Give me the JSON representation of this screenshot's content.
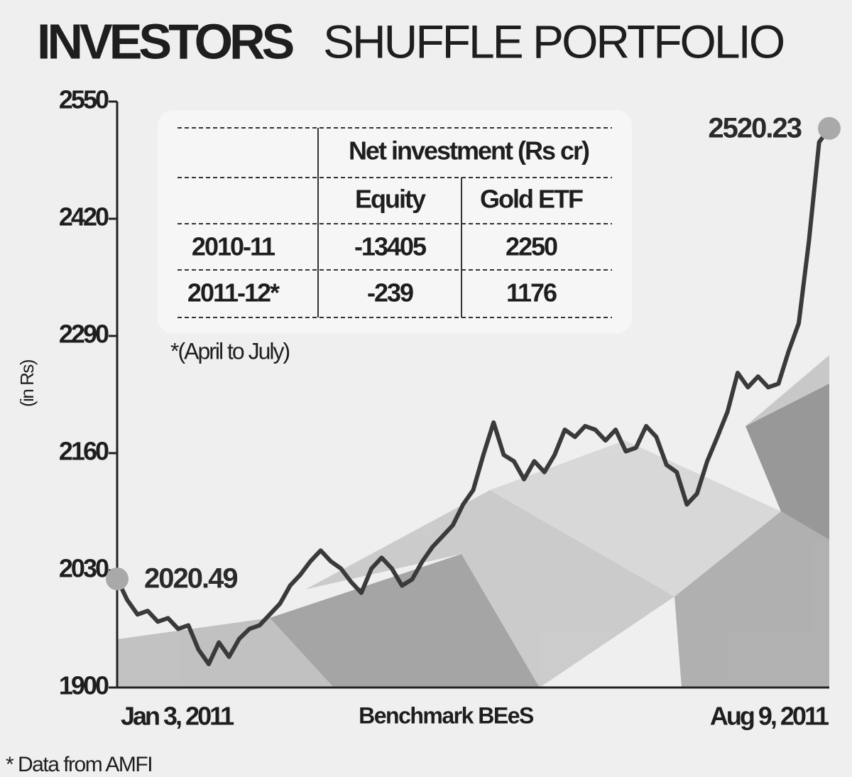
{
  "chart_data": {
    "type": "line",
    "title": "INVESTORS",
    "subtitle": "SHUFFLE PORTFOLIO",
    "y_label": "(in Rs)",
    "x_label": "Benchmark BEeS",
    "footnote": "* Data from AMFI",
    "ylim": [
      1900,
      2550
    ],
    "yticks": [
      1900,
      2030,
      2160,
      2290,
      2420,
      2550
    ],
    "categories": [
      "Jan 3, 2011",
      null,
      null,
      null,
      null,
      null,
      null,
      null,
      null,
      null,
      null,
      null,
      null,
      null,
      null,
      null,
      null,
      null,
      null,
      null,
      null,
      null,
      null,
      null,
      null,
      null,
      null,
      null,
      null,
      null,
      null,
      null,
      null,
      null,
      null,
      null,
      null,
      null,
      null,
      null,
      null,
      null,
      null,
      null,
      null,
      null,
      null,
      null,
      null,
      null,
      null,
      null,
      null,
      null,
      null,
      null,
      null,
      null,
      null,
      null,
      null,
      null,
      null,
      null,
      null,
      null,
      null,
      null,
      null,
      null,
      "Aug 9, 2011"
    ],
    "series": [
      {
        "name": "Benchmark BEeS",
        "color": "#3a3a3a",
        "values": [
          2020.49,
          1997,
          1981,
          1985,
          1973,
          1977,
          1965,
          1969,
          1942,
          1926,
          1950,
          1934,
          1954,
          1965,
          1969,
          1981,
          1993,
          2013,
          2025,
          2040,
          2052,
          2040,
          2032,
          2017,
          2005,
          2032,
          2044,
          2032,
          2013,
          2020,
          2040,
          2056,
          2068,
          2080,
          2103,
          2119,
          2158,
          2194,
          2158,
          2151,
          2131,
          2151,
          2139,
          2158,
          2186,
          2178,
          2190,
          2186,
          2174,
          2186,
          2162,
          2166,
          2190,
          2178,
          2147,
          2139,
          2103,
          2115,
          2151,
          2178,
          2206,
          2249,
          2233,
          2245,
          2233,
          2237,
          2273,
          2304,
          2395,
          2505,
          2520.23
        ],
        "value_labels": [
          "2020.49",
          null,
          null,
          null,
          null,
          null,
          null,
          null,
          null,
          null,
          null,
          null,
          null,
          null,
          null,
          null,
          null,
          null,
          null,
          null,
          null,
          null,
          null,
          null,
          null,
          null,
          null,
          null,
          null,
          null,
          null,
          null,
          null,
          null,
          null,
          null,
          null,
          null,
          null,
          null,
          null,
          null,
          null,
          null,
          null,
          null,
          null,
          null,
          null,
          null,
          null,
          null,
          null,
          null,
          null,
          null,
          null,
          null,
          null,
          null,
          null,
          null,
          null,
          null,
          null,
          null,
          null,
          null,
          null,
          null,
          "2520.23"
        ]
      }
    ],
    "table": {
      "header": "Net investment (Rs cr)",
      "columns": [
        "Equity",
        "Gold ETF"
      ],
      "rows": [
        {
          "label": "2010-11",
          "values": [
            -13405,
            2250
          ]
        },
        {
          "label": "2011-12*",
          "values": [
            -239,
            1176
          ]
        }
      ],
      "note": "*(April to July)"
    }
  }
}
